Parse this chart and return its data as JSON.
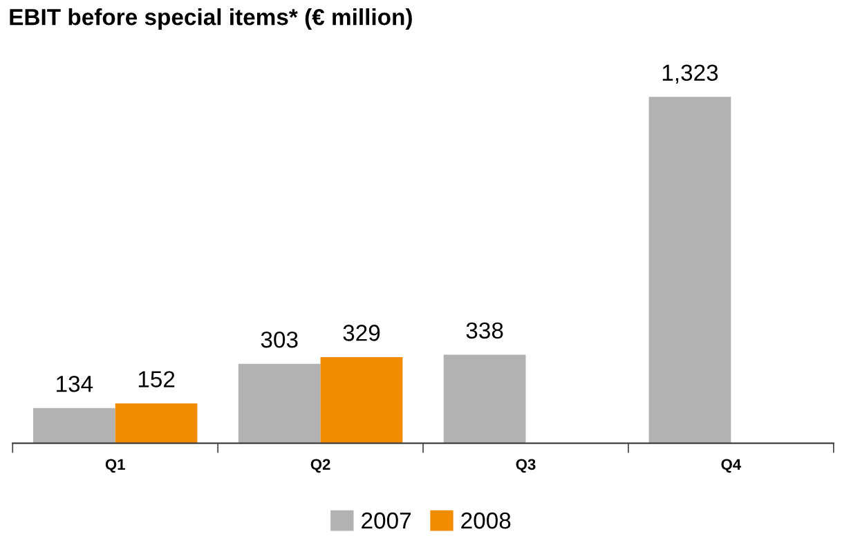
{
  "chart_data": {
    "type": "bar",
    "title": "EBIT before special items* (€ million)",
    "categories": [
      "Q1",
      "Q2",
      "Q3",
      "Q4"
    ],
    "series": [
      {
        "name": "2007",
        "color": "#b2b2b2",
        "values": [
          134,
          303,
          338,
          1323
        ],
        "value_labels": [
          "134",
          "303",
          "338",
          "1,323"
        ]
      },
      {
        "name": "2008",
        "color": "#f28c00",
        "values": [
          152,
          329,
          null,
          null
        ],
        "value_labels": [
          "152",
          "329",
          null,
          null
        ]
      }
    ],
    "legend": "bottom",
    "grid": false
  }
}
